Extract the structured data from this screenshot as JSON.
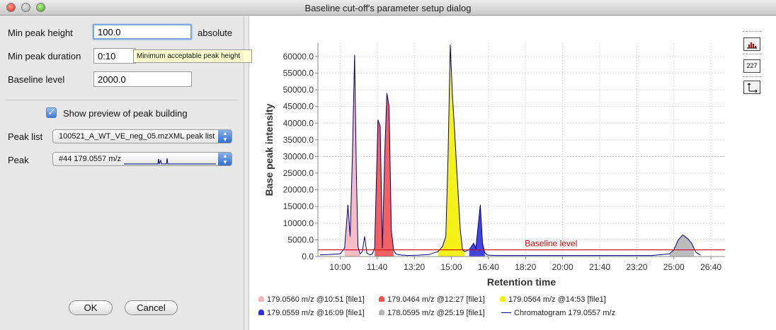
{
  "window": {
    "title": "Baseline cut-off's parameter setup dialog"
  },
  "form": {
    "min_peak_height": {
      "label": "Min peak height",
      "value": "100.0",
      "unit": "absolute"
    },
    "min_peak_duration": {
      "label": "Min peak duration",
      "value": "0:10"
    },
    "baseline_level": {
      "label": "Baseline level",
      "value": "2000.0"
    },
    "tooltip": "Minimum acceptable peak height",
    "show_preview": {
      "label": "Show preview of peak building",
      "checked": true
    },
    "peak_list": {
      "label": "Peak list",
      "value": "100521_A_WT_VE_neg_05.mzXML peak list"
    },
    "peak": {
      "label": "Peak",
      "value": "#44 179.0557 m/z"
    }
  },
  "buttons": {
    "ok": "OK",
    "cancel": "Cancel"
  },
  "toolbar_icons": [
    "histogram-icon",
    "data-labels-icon",
    "axes-icon"
  ],
  "toolbar_labels": {
    "data_labels": "227"
  },
  "chart_data": {
    "type": "area",
    "xlabel": "Retention time",
    "ylabel": "Base peak intensity",
    "x_ticks": [
      "10:00",
      "11:40",
      "13:20",
      "15:00",
      "16:40",
      "18:20",
      "20:00",
      "21:40",
      "23:20",
      "25:00",
      "26:40"
    ],
    "y_ticks": [
      "0.0",
      "5000.0",
      "10000.0",
      "15000.0",
      "20000.0",
      "25000.0",
      "30000.0",
      "35000.0",
      "40000.0",
      "45000.0",
      "50000.0",
      "55000.0",
      "60000.0"
    ],
    "xlim_minutes": [
      9.0,
      27.3
    ],
    "ylim": [
      0,
      64000
    ],
    "grid": true,
    "baseline": {
      "value": 2000,
      "label": "Baseline level",
      "color": "#cc0000"
    },
    "chromatogram": {
      "name": "Chromatogram 179.0557 m/z",
      "color": "#000080",
      "x_minutes": [
        9.1,
        9.5,
        10.0,
        10.2,
        10.35,
        10.45,
        10.55,
        10.65,
        10.73,
        10.8,
        10.9,
        11.0,
        11.1,
        11.2,
        11.35,
        11.45,
        11.55,
        11.7,
        11.8,
        11.9,
        12.0,
        12.1,
        12.2,
        12.3,
        12.4,
        12.5,
        12.6,
        12.7,
        12.8,
        12.9,
        13.0,
        13.5,
        14.0,
        14.4,
        14.6,
        14.75,
        14.85,
        14.95,
        15.05,
        15.15,
        15.25,
        15.4,
        15.5,
        15.6,
        15.8,
        16.0,
        16.1,
        16.2,
        16.3,
        16.4,
        16.5,
        16.6,
        16.7,
        17.0,
        18.0,
        20.0,
        22.0,
        24.0,
        24.8,
        25.0,
        25.2,
        25.4,
        25.6,
        25.8,
        25.9,
        26.0,
        26.2
      ],
      "values": [
        500,
        600,
        800,
        2500,
        15500,
        6000,
        30000,
        60500,
        25000,
        3000,
        800,
        1500,
        6000,
        1000,
        500,
        800,
        2500,
        41000,
        39000,
        2500,
        30000,
        49000,
        45000,
        8000,
        2000,
        800,
        600,
        500,
        400,
        400,
        300,
        400,
        600,
        1500,
        3000,
        6000,
        30000,
        63500,
        48000,
        37000,
        25000,
        8000,
        2000,
        1500,
        2000,
        4000,
        2500,
        9000,
        15500,
        4000,
        1200,
        500,
        400,
        300,
        300,
        300,
        300,
        300,
        800,
        2000,
        5000,
        6500,
        5500,
        4000,
        2500,
        1200,
        400
      ]
    },
    "peaks": [
      {
        "label": "179.0560 m/z @10:51 [file1]",
        "color": "#f2b5bd",
        "from": 10.2,
        "to": 10.9
      },
      {
        "label": "179.0464 m/z @12:27 [file1]",
        "color": "#f05050",
        "from": 11.55,
        "to": 12.4
      },
      {
        "label": "179.0564 m/z @14:53 [file1]",
        "color": "#f5f000",
        "from": 14.4,
        "to": 15.6
      },
      {
        "label": "179.0559 m/z @16:09 [file1]",
        "color": "#3030e0",
        "from": 15.8,
        "to": 16.5
      },
      {
        "label": "178.0595 m/z @25:19 [file1]",
        "color": "#b5b5b5",
        "from": 24.8,
        "to": 25.9
      }
    ]
  }
}
